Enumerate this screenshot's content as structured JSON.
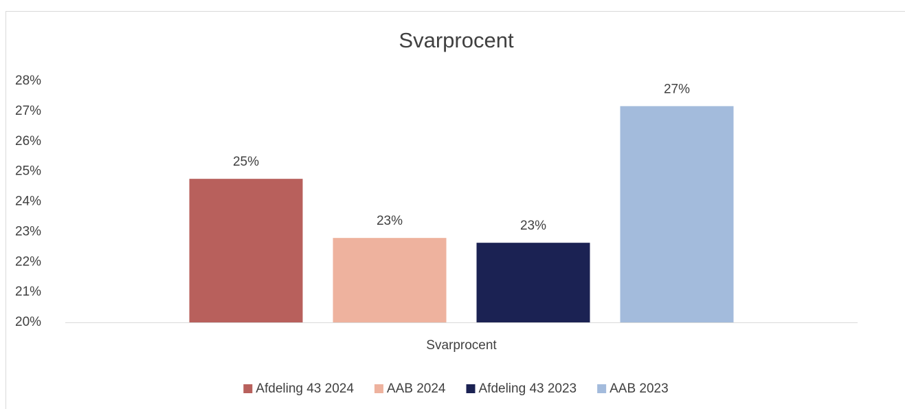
{
  "chart_data": {
    "type": "bar",
    "title": "Svarprocent",
    "categories": [
      "Svarprocent"
    ],
    "series": [
      {
        "name": "Afdeling 43 2024",
        "color": "#b8605c",
        "values": [
          24.76
        ],
        "value_labels": [
          "25%"
        ]
      },
      {
        "name": "AAB 2024",
        "color": "#eeb29e",
        "values": [
          22.8
        ],
        "value_labels": [
          "23%"
        ]
      },
      {
        "name": "Afdeling 43 2023",
        "color": "#1b2253",
        "values": [
          22.64
        ],
        "value_labels": [
          "23%"
        ]
      },
      {
        "name": "AAB 2023",
        "color": "#a3bbdc",
        "values": [
          27.17
        ],
        "value_labels": [
          "27%"
        ]
      }
    ],
    "ylim": [
      20,
      28
    ],
    "yticks": [
      {
        "value": 20,
        "label": "20%"
      },
      {
        "value": 21,
        "label": "21%"
      },
      {
        "value": 22,
        "label": "22%"
      },
      {
        "value": 23,
        "label": "23%"
      },
      {
        "value": 24,
        "label": "24%"
      },
      {
        "value": 25,
        "label": "25%"
      },
      {
        "value": 26,
        "label": "26%"
      },
      {
        "value": 27,
        "label": "27%"
      },
      {
        "value": 28,
        "label": "28%"
      }
    ],
    "grid": false,
    "legend": "bottom"
  }
}
